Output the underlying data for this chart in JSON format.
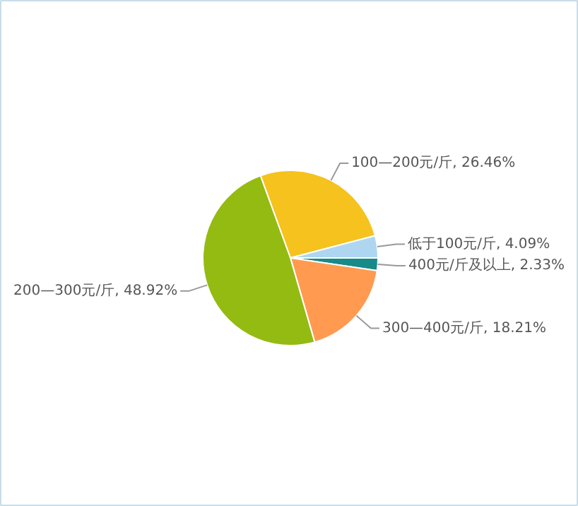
{
  "chart_data": {
    "type": "pie",
    "categories": [
      "100—200元/斤",
      "低于100元/斤",
      "400元/斤及以上",
      "300—400元/斤",
      "200—300元/斤"
    ],
    "values": [
      26.46,
      4.09,
      2.33,
      18.21,
      48.92
    ],
    "value_labels": [
      ", 26.46%",
      ", 4.09%",
      ", 2.33%",
      ", 18.21%",
      ", 48.92%"
    ],
    "colors": [
      "#f5c21e",
      "#aed6f1",
      "#178a8a",
      "#ff9a50",
      "#93bb12"
    ]
  }
}
